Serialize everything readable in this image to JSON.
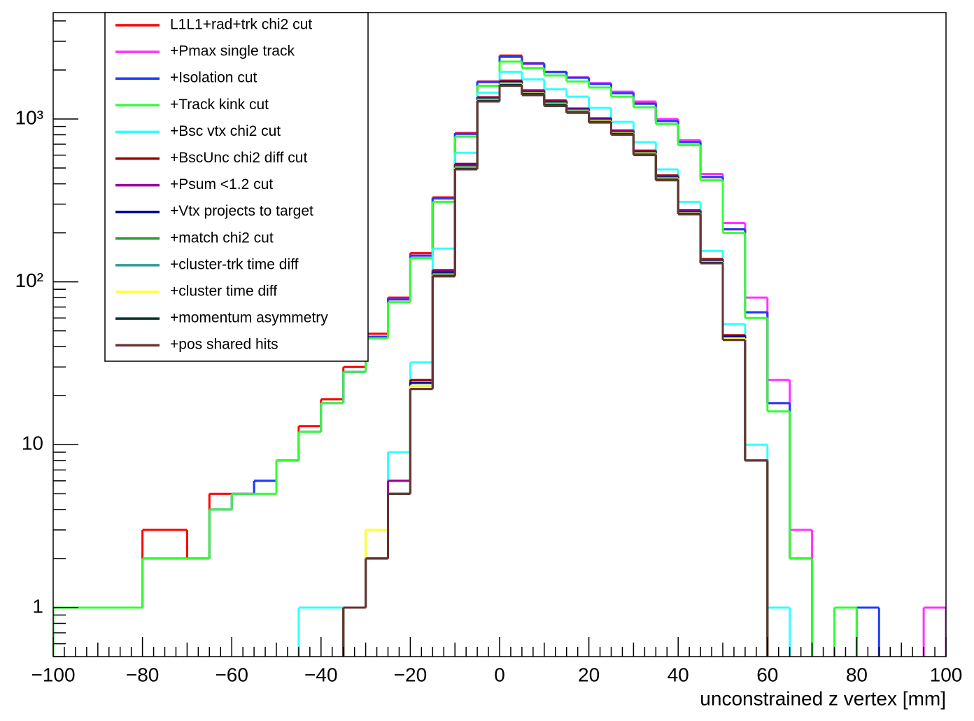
{
  "chart_data": {
    "type": "histogram",
    "x_label": "unconstrained z vertex [mm]",
    "bins": [
      -100,
      -95,
      -90,
      -85,
      -80,
      -75,
      -70,
      -65,
      -60,
      -55,
      -50,
      -45,
      -40,
      -35,
      -30,
      -25,
      -20,
      -15,
      -10,
      -5,
      0,
      5,
      10,
      15,
      20,
      25,
      30,
      35,
      40,
      45,
      50,
      55,
      60,
      65,
      70,
      75,
      80,
      85,
      90,
      95,
      100
    ],
    "xlim": [
      -100,
      100
    ],
    "xticks": [
      {
        "value": -100,
        "label": "−100"
      },
      {
        "value": -80,
        "label": "−80"
      },
      {
        "value": -60,
        "label": "−60"
      },
      {
        "value": -40,
        "label": "−40"
      },
      {
        "value": -20,
        "label": "−20"
      },
      0,
      20,
      40,
      60,
      80,
      100
    ],
    "ylim": [
      0.5,
      4500
    ],
    "log_y": true,
    "yticks": [
      1,
      10,
      {
        "value": 100,
        "label": "10²"
      },
      {
        "value": 1000,
        "label": "10³"
      }
    ],
    "legend": "upper left",
    "series": [
      {
        "name": "L1L1+rad+trk chi2 cut",
        "color": "#ff0000",
        "values": [
          1,
          1,
          1,
          1,
          3,
          3,
          2,
          5,
          5,
          6,
          8,
          13,
          19,
          30,
          48,
          80,
          150,
          330,
          820,
          1700,
          2450,
          2200,
          1950,
          1800,
          1650,
          1450,
          1250,
          980,
          720,
          440,
          210,
          65,
          18,
          2,
          0,
          0,
          0,
          0,
          0,
          0
        ]
      },
      {
        "name": "+Pmax single track",
        "color": "#ff33ff",
        "values": [
          1,
          1,
          1,
          1,
          2,
          2,
          2,
          4,
          5,
          6,
          8,
          12,
          18,
          28,
          46,
          78,
          145,
          325,
          810,
          1680,
          2400,
          2180,
          1940,
          1800,
          1660,
          1470,
          1280,
          1000,
          740,
          460,
          230,
          80,
          25,
          3,
          0,
          0,
          0,
          0,
          0,
          1
        ]
      },
      {
        "name": "+Isolation cut",
        "color": "#1e3cff",
        "values": [
          1,
          1,
          1,
          1,
          2,
          2,
          2,
          4,
          5,
          6,
          8,
          12,
          18,
          28,
          46,
          78,
          145,
          325,
          810,
          1690,
          2420,
          2190,
          1940,
          1790,
          1640,
          1440,
          1240,
          970,
          720,
          440,
          210,
          65,
          18,
          2,
          0,
          0,
          1,
          0,
          0,
          0
        ]
      },
      {
        "name": "+Track kink cut",
        "color": "#33ff33",
        "values": [
          1,
          1,
          1,
          1,
          2,
          2,
          2,
          4,
          5,
          5,
          8,
          12,
          18,
          28,
          45,
          75,
          140,
          310,
          780,
          1600,
          2250,
          2050,
          1850,
          1700,
          1560,
          1370,
          1180,
          930,
          690,
          420,
          200,
          60,
          16,
          2,
          0,
          1,
          0,
          0,
          0,
          0
        ]
      },
      {
        "name": "+Bsc vtx chi2 cut",
        "color": "#33ffff",
        "values": [
          0,
          0,
          0,
          0,
          0,
          0,
          0,
          0,
          0,
          0,
          0,
          1,
          1,
          1,
          3,
          9,
          32,
          160,
          620,
          1450,
          1950,
          1750,
          1520,
          1370,
          1170,
          960,
          720,
          490,
          310,
          155,
          55,
          10,
          1,
          0,
          0,
          0,
          0,
          0,
          0,
          0
        ]
      },
      {
        "name": "+BscUnc chi2 diff cut",
        "color": "#990000",
        "values": [
          0,
          0,
          0,
          0,
          0,
          0,
          0,
          0,
          0,
          0,
          0,
          0,
          0,
          1,
          2,
          6,
          25,
          118,
          530,
          1360,
          1720,
          1500,
          1300,
          1160,
          1010,
          850,
          640,
          450,
          275,
          138,
          47,
          8,
          0,
          0,
          0,
          0,
          0,
          0,
          0,
          0
        ]
      },
      {
        "name": "+Psum <1.2 cut",
        "color": "#990099",
        "values": [
          0,
          0,
          0,
          0,
          0,
          0,
          0,
          0,
          0,
          0,
          0,
          0,
          0,
          1,
          2,
          6,
          24,
          116,
          520,
          1350,
          1700,
          1480,
          1280,
          1150,
          1000,
          840,
          630,
          445,
          272,
          136,
          46,
          8,
          0,
          0,
          0,
          0,
          0,
          0,
          0,
          0
        ]
      },
      {
        "name": "+Vtx projects to target",
        "color": "#000099",
        "values": [
          0,
          0,
          0,
          0,
          0,
          0,
          0,
          0,
          0,
          0,
          0,
          0,
          0,
          1,
          2,
          5,
          24,
          114,
          515,
          1330,
          1680,
          1460,
          1260,
          1140,
          990,
          830,
          625,
          440,
          268,
          134,
          46,
          8,
          0,
          0,
          0,
          0,
          0,
          0,
          0,
          0
        ]
      },
      {
        "name": "+match chi2 cut",
        "color": "#339933",
        "values": [
          0,
          0,
          0,
          0,
          0,
          0,
          0,
          0,
          0,
          0,
          0,
          0,
          0,
          1,
          2,
          5,
          23,
          112,
          510,
          1320,
          1660,
          1450,
          1250,
          1130,
          980,
          825,
          620,
          435,
          265,
          133,
          45,
          8,
          0,
          0,
          0,
          0,
          0,
          0,
          0,
          0
        ]
      },
      {
        "name": "+cluster-trk time diff",
        "color": "#339999",
        "values": [
          0,
          0,
          0,
          0,
          0,
          0,
          0,
          0,
          0,
          0,
          0,
          0,
          0,
          1,
          2,
          5,
          23,
          111,
          505,
          1310,
          1650,
          1440,
          1240,
          1120,
          975,
          820,
          615,
          432,
          264,
          132,
          45,
          8,
          0,
          0,
          0,
          0,
          0,
          0,
          0,
          0
        ]
      },
      {
        "name": "+cluster time diff",
        "color": "#ffff33",
        "values": [
          0,
          0,
          0,
          0,
          0,
          0,
          0,
          0,
          0,
          0,
          0,
          0,
          0,
          1,
          3,
          5,
          23,
          110,
          500,
          1300,
          1640,
          1430,
          1230,
          1110,
          970,
          815,
          612,
          430,
          263,
          132,
          45,
          8,
          0,
          0,
          0,
          0,
          0,
          0,
          0,
          0
        ]
      },
      {
        "name": "+momentum asymmetry",
        "color": "#003333",
        "values": [
          0,
          0,
          0,
          0,
          0,
          0,
          0,
          0,
          0,
          0,
          0,
          0,
          0,
          1,
          2,
          5,
          22,
          109,
          495,
          1290,
          1620,
          1420,
          1220,
          1100,
          960,
          810,
          605,
          425,
          262,
          131,
          44,
          8,
          0,
          0,
          0,
          0,
          0,
          0,
          0,
          0
        ]
      },
      {
        "name": "+pos shared hits",
        "color": "#663333",
        "values": [
          0,
          0,
          0,
          0,
          0,
          0,
          0,
          0,
          0,
          0,
          0,
          0,
          0,
          1,
          2,
          5,
          22,
          108,
          490,
          1280,
          1600,
          1400,
          1200,
          1090,
          950,
          800,
          600,
          420,
          260,
          130,
          44,
          8,
          0,
          0,
          0,
          0,
          0,
          0,
          0,
          0
        ]
      }
    ]
  }
}
